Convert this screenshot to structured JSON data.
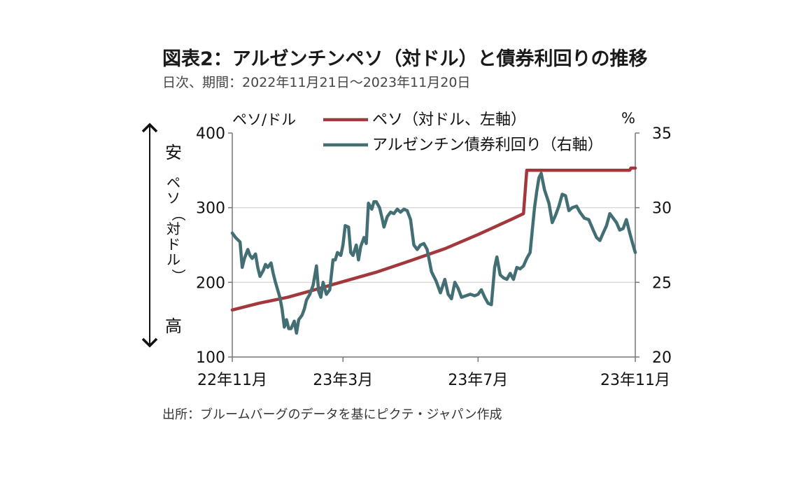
{
  "title": "図表2：アルゼンチンペソ（対ドル）と債券利回りの推移",
  "subtitle": "日次、期間：2022年11月21日～2023年11月20日",
  "source": "出所：ブルームバーグのデータを基にピクテ・ジャパン作成",
  "chart_data": {
    "type": "line",
    "left_unit": "ペソ/ドル",
    "right_unit": "%",
    "left_axis_label": [
      "ペ",
      "ソ",
      "（",
      "対",
      "ド",
      "ル",
      "）"
    ],
    "arrow_top_label": "安",
    "arrow_bottom_label": "高",
    "ylim_left": [
      100,
      400
    ],
    "ylim_right": [
      20,
      35
    ],
    "left_ticks": [
      "100",
      "200",
      "300",
      "400"
    ],
    "right_ticks": [
      "20",
      "25",
      "30",
      "35"
    ],
    "x_range": [
      "2022-11-21",
      "2023-11-20"
    ],
    "x_ticks": [
      {
        "date": "2022-11-21",
        "label": "22年11月"
      },
      {
        "date": "2023-03-01",
        "label": "23年3月"
      },
      {
        "date": "2023-07-01",
        "label": "23年7月"
      },
      {
        "date": "2023-11-20",
        "label": "23年11月"
      }
    ],
    "legend_placement": "top",
    "grid": true,
    "series": [
      {
        "name": "ペソ（対ドル、左軸）",
        "axis": "left",
        "color": "#a3383c",
        "points": [
          [
            "2022-11-21",
            163
          ],
          [
            "2022-12-15",
            172
          ],
          [
            "2023-01-10",
            180
          ],
          [
            "2023-02-01",
            189
          ],
          [
            "2023-03-01",
            201
          ],
          [
            "2023-04-01",
            214
          ],
          [
            "2023-05-01",
            229
          ],
          [
            "2023-06-01",
            245
          ],
          [
            "2023-07-01",
            264
          ],
          [
            "2023-08-01",
            285
          ],
          [
            "2023-08-11",
            292
          ],
          [
            "2023-08-14",
            350
          ],
          [
            "2023-09-15",
            350
          ],
          [
            "2023-10-15",
            350
          ],
          [
            "2023-11-15",
            350
          ],
          [
            "2023-11-16",
            353
          ],
          [
            "2023-11-20",
            353
          ]
        ]
      },
      {
        "name": "アルゼンチン債券利回り（右軸）",
        "axis": "right",
        "color": "#436f74",
        "points": [
          [
            "2022-11-21",
            28.3
          ],
          [
            "2022-11-24",
            28.0
          ],
          [
            "2022-11-28",
            27.7
          ],
          [
            "2022-11-30",
            26.0
          ],
          [
            "2022-12-02",
            26.6
          ],
          [
            "2022-12-05",
            27.2
          ],
          [
            "2022-12-07",
            26.8
          ],
          [
            "2022-12-09",
            26.6
          ],
          [
            "2022-12-12",
            26.9
          ],
          [
            "2022-12-14",
            26.0
          ],
          [
            "2022-12-16",
            25.4
          ],
          [
            "2022-12-19",
            25.8
          ],
          [
            "2022-12-21",
            26.2
          ],
          [
            "2022-12-23",
            26.0
          ],
          [
            "2022-12-26",
            26.3
          ],
          [
            "2022-12-28",
            25.6
          ],
          [
            "2022-12-30",
            25.0
          ],
          [
            "2023-01-03",
            24.0
          ],
          [
            "2023-01-05",
            23.2
          ],
          [
            "2023-01-07",
            22.0
          ],
          [
            "2023-01-09",
            22.5
          ],
          [
            "2023-01-11",
            21.9
          ],
          [
            "2023-01-13",
            21.9
          ],
          [
            "2023-01-16",
            22.4
          ],
          [
            "2023-01-18",
            21.6
          ],
          [
            "2023-01-20",
            22.5
          ],
          [
            "2023-01-23",
            22.8
          ],
          [
            "2023-01-25",
            23.2
          ],
          [
            "2023-01-27",
            23.8
          ],
          [
            "2023-01-30",
            24.2
          ],
          [
            "2023-02-02",
            24.8
          ],
          [
            "2023-02-05",
            26.1
          ],
          [
            "2023-02-07",
            24.4
          ],
          [
            "2023-02-09",
            24.0
          ],
          [
            "2023-02-11",
            25.0
          ],
          [
            "2023-02-14",
            24.2
          ],
          [
            "2023-02-17",
            24.5
          ],
          [
            "2023-02-20",
            26.5
          ],
          [
            "2023-02-22",
            26.5
          ],
          [
            "2023-02-24",
            27.0
          ],
          [
            "2023-02-27",
            26.8
          ],
          [
            "2023-03-01",
            27.5
          ],
          [
            "2023-03-03",
            28.8
          ],
          [
            "2023-03-06",
            28.7
          ],
          [
            "2023-03-08",
            27.0
          ],
          [
            "2023-03-10",
            26.8
          ],
          [
            "2023-03-13",
            27.5
          ],
          [
            "2023-03-15",
            26.5
          ],
          [
            "2023-03-17",
            27.4
          ],
          [
            "2023-03-20",
            28.0
          ],
          [
            "2023-03-22",
            27.6
          ],
          [
            "2023-03-24",
            30.3
          ],
          [
            "2023-03-27",
            29.9
          ],
          [
            "2023-03-29",
            30.4
          ],
          [
            "2023-03-31",
            30.4
          ],
          [
            "2023-04-03",
            30.0
          ],
          [
            "2023-04-05",
            29.4
          ],
          [
            "2023-04-07",
            28.7
          ],
          [
            "2023-04-10",
            29.4
          ],
          [
            "2023-04-13",
            29.7
          ],
          [
            "2023-04-16",
            29.6
          ],
          [
            "2023-04-19",
            29.9
          ],
          [
            "2023-04-22",
            29.7
          ],
          [
            "2023-04-25",
            29.9
          ],
          [
            "2023-04-28",
            29.8
          ],
          [
            "2023-05-01",
            29.2
          ],
          [
            "2023-05-04",
            27.5
          ],
          [
            "2023-05-07",
            27.2
          ],
          [
            "2023-05-10",
            27.5
          ],
          [
            "2023-05-13",
            27.6
          ],
          [
            "2023-05-16",
            27.2
          ],
          [
            "2023-05-20",
            25.7
          ],
          [
            "2023-05-24",
            25.1
          ],
          [
            "2023-05-28",
            24.3
          ],
          [
            "2023-06-01",
            25.2
          ],
          [
            "2023-06-04",
            24.2
          ],
          [
            "2023-06-07",
            23.9
          ],
          [
            "2023-06-10",
            25.0
          ],
          [
            "2023-06-13",
            24.6
          ],
          [
            "2023-06-16",
            24.0
          ],
          [
            "2023-06-20",
            24.1
          ],
          [
            "2023-06-24",
            24.2
          ],
          [
            "2023-06-28",
            24.1
          ],
          [
            "2023-07-01",
            24.2
          ],
          [
            "2023-07-04",
            24.5
          ],
          [
            "2023-07-07",
            24.0
          ],
          [
            "2023-07-10",
            23.6
          ],
          [
            "2023-07-13",
            23.5
          ],
          [
            "2023-07-16",
            26.0
          ],
          [
            "2023-07-18",
            26.7
          ],
          [
            "2023-07-21",
            25.5
          ],
          [
            "2023-07-24",
            25.3
          ],
          [
            "2023-07-27",
            25.2
          ],
          [
            "2023-07-30",
            25.6
          ],
          [
            "2023-08-02",
            25.2
          ],
          [
            "2023-08-05",
            26.0
          ],
          [
            "2023-08-08",
            25.9
          ],
          [
            "2023-08-11",
            26.1
          ],
          [
            "2023-08-14",
            26.6
          ],
          [
            "2023-08-17",
            27.0
          ],
          [
            "2023-08-19",
            28.5
          ],
          [
            "2023-08-21",
            30.0
          ],
          [
            "2023-08-23",
            31.1
          ],
          [
            "2023-08-25",
            32.0
          ],
          [
            "2023-08-27",
            32.3
          ],
          [
            "2023-08-30",
            31.2
          ],
          [
            "2023-09-03",
            30.3
          ],
          [
            "2023-09-06",
            29.0
          ],
          [
            "2023-09-09",
            29.5
          ],
          [
            "2023-09-12",
            30.1
          ],
          [
            "2023-09-15",
            30.9
          ],
          [
            "2023-09-18",
            30.8
          ],
          [
            "2023-09-21",
            29.8
          ],
          [
            "2023-09-24",
            30.0
          ],
          [
            "2023-09-28",
            30.1
          ],
          [
            "2023-10-01",
            29.7
          ],
          [
            "2023-10-05",
            29.3
          ],
          [
            "2023-10-09",
            29.2
          ],
          [
            "2023-10-13",
            28.5
          ],
          [
            "2023-10-16",
            28.0
          ],
          [
            "2023-10-19",
            27.8
          ],
          [
            "2023-10-22",
            28.3
          ],
          [
            "2023-10-25",
            28.8
          ],
          [
            "2023-10-28",
            29.6
          ],
          [
            "2023-10-31",
            29.3
          ],
          [
            "2023-11-03",
            29.0
          ],
          [
            "2023-11-06",
            28.5
          ],
          [
            "2023-11-09",
            28.6
          ],
          [
            "2023-11-12",
            29.2
          ],
          [
            "2023-11-15",
            28.3
          ],
          [
            "2023-11-18",
            27.5
          ],
          [
            "2023-11-20",
            27.0
          ]
        ]
      }
    ]
  }
}
